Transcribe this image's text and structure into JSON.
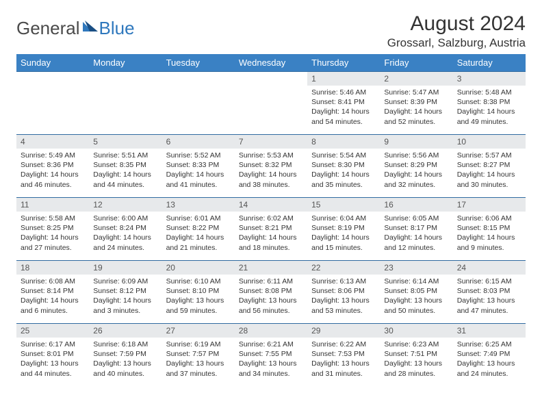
{
  "brand": {
    "part1": "General",
    "part2": "Blue"
  },
  "title": "August 2024",
  "location": "Grossarl, Salzburg, Austria",
  "colors": {
    "header_bg": "#3a81c4",
    "header_text": "#ffffff",
    "daynum_bg": "#e7e9eb",
    "row_border": "#2f6aa0",
    "brand_gray": "#4a4a4a",
    "brand_blue": "#2f78bd"
  },
  "weekdays": [
    "Sunday",
    "Monday",
    "Tuesday",
    "Wednesday",
    "Thursday",
    "Friday",
    "Saturday"
  ],
  "grid": [
    [
      {
        "empty": true
      },
      {
        "empty": true
      },
      {
        "empty": true
      },
      {
        "empty": true
      },
      {
        "day": "1",
        "sunrise": "Sunrise: 5:46 AM",
        "sunset": "Sunset: 8:41 PM",
        "dl1": "Daylight: 14 hours",
        "dl2": "and 54 minutes."
      },
      {
        "day": "2",
        "sunrise": "Sunrise: 5:47 AM",
        "sunset": "Sunset: 8:39 PM",
        "dl1": "Daylight: 14 hours",
        "dl2": "and 52 minutes."
      },
      {
        "day": "3",
        "sunrise": "Sunrise: 5:48 AM",
        "sunset": "Sunset: 8:38 PM",
        "dl1": "Daylight: 14 hours",
        "dl2": "and 49 minutes."
      }
    ],
    [
      {
        "day": "4",
        "sunrise": "Sunrise: 5:49 AM",
        "sunset": "Sunset: 8:36 PM",
        "dl1": "Daylight: 14 hours",
        "dl2": "and 46 minutes."
      },
      {
        "day": "5",
        "sunrise": "Sunrise: 5:51 AM",
        "sunset": "Sunset: 8:35 PM",
        "dl1": "Daylight: 14 hours",
        "dl2": "and 44 minutes."
      },
      {
        "day": "6",
        "sunrise": "Sunrise: 5:52 AM",
        "sunset": "Sunset: 8:33 PM",
        "dl1": "Daylight: 14 hours",
        "dl2": "and 41 minutes."
      },
      {
        "day": "7",
        "sunrise": "Sunrise: 5:53 AM",
        "sunset": "Sunset: 8:32 PM",
        "dl1": "Daylight: 14 hours",
        "dl2": "and 38 minutes."
      },
      {
        "day": "8",
        "sunrise": "Sunrise: 5:54 AM",
        "sunset": "Sunset: 8:30 PM",
        "dl1": "Daylight: 14 hours",
        "dl2": "and 35 minutes."
      },
      {
        "day": "9",
        "sunrise": "Sunrise: 5:56 AM",
        "sunset": "Sunset: 8:29 PM",
        "dl1": "Daylight: 14 hours",
        "dl2": "and 32 minutes."
      },
      {
        "day": "10",
        "sunrise": "Sunrise: 5:57 AM",
        "sunset": "Sunset: 8:27 PM",
        "dl1": "Daylight: 14 hours",
        "dl2": "and 30 minutes."
      }
    ],
    [
      {
        "day": "11",
        "sunrise": "Sunrise: 5:58 AM",
        "sunset": "Sunset: 8:25 PM",
        "dl1": "Daylight: 14 hours",
        "dl2": "and 27 minutes."
      },
      {
        "day": "12",
        "sunrise": "Sunrise: 6:00 AM",
        "sunset": "Sunset: 8:24 PM",
        "dl1": "Daylight: 14 hours",
        "dl2": "and 24 minutes."
      },
      {
        "day": "13",
        "sunrise": "Sunrise: 6:01 AM",
        "sunset": "Sunset: 8:22 PM",
        "dl1": "Daylight: 14 hours",
        "dl2": "and 21 minutes."
      },
      {
        "day": "14",
        "sunrise": "Sunrise: 6:02 AM",
        "sunset": "Sunset: 8:21 PM",
        "dl1": "Daylight: 14 hours",
        "dl2": "and 18 minutes."
      },
      {
        "day": "15",
        "sunrise": "Sunrise: 6:04 AM",
        "sunset": "Sunset: 8:19 PM",
        "dl1": "Daylight: 14 hours",
        "dl2": "and 15 minutes."
      },
      {
        "day": "16",
        "sunrise": "Sunrise: 6:05 AM",
        "sunset": "Sunset: 8:17 PM",
        "dl1": "Daylight: 14 hours",
        "dl2": "and 12 minutes."
      },
      {
        "day": "17",
        "sunrise": "Sunrise: 6:06 AM",
        "sunset": "Sunset: 8:15 PM",
        "dl1": "Daylight: 14 hours",
        "dl2": "and 9 minutes."
      }
    ],
    [
      {
        "day": "18",
        "sunrise": "Sunrise: 6:08 AM",
        "sunset": "Sunset: 8:14 PM",
        "dl1": "Daylight: 14 hours",
        "dl2": "and 6 minutes."
      },
      {
        "day": "19",
        "sunrise": "Sunrise: 6:09 AM",
        "sunset": "Sunset: 8:12 PM",
        "dl1": "Daylight: 14 hours",
        "dl2": "and 3 minutes."
      },
      {
        "day": "20",
        "sunrise": "Sunrise: 6:10 AM",
        "sunset": "Sunset: 8:10 PM",
        "dl1": "Daylight: 13 hours",
        "dl2": "and 59 minutes."
      },
      {
        "day": "21",
        "sunrise": "Sunrise: 6:11 AM",
        "sunset": "Sunset: 8:08 PM",
        "dl1": "Daylight: 13 hours",
        "dl2": "and 56 minutes."
      },
      {
        "day": "22",
        "sunrise": "Sunrise: 6:13 AM",
        "sunset": "Sunset: 8:06 PM",
        "dl1": "Daylight: 13 hours",
        "dl2": "and 53 minutes."
      },
      {
        "day": "23",
        "sunrise": "Sunrise: 6:14 AM",
        "sunset": "Sunset: 8:05 PM",
        "dl1": "Daylight: 13 hours",
        "dl2": "and 50 minutes."
      },
      {
        "day": "24",
        "sunrise": "Sunrise: 6:15 AM",
        "sunset": "Sunset: 8:03 PM",
        "dl1": "Daylight: 13 hours",
        "dl2": "and 47 minutes."
      }
    ],
    [
      {
        "day": "25",
        "sunrise": "Sunrise: 6:17 AM",
        "sunset": "Sunset: 8:01 PM",
        "dl1": "Daylight: 13 hours",
        "dl2": "and 44 minutes."
      },
      {
        "day": "26",
        "sunrise": "Sunrise: 6:18 AM",
        "sunset": "Sunset: 7:59 PM",
        "dl1": "Daylight: 13 hours",
        "dl2": "and 40 minutes."
      },
      {
        "day": "27",
        "sunrise": "Sunrise: 6:19 AM",
        "sunset": "Sunset: 7:57 PM",
        "dl1": "Daylight: 13 hours",
        "dl2": "and 37 minutes."
      },
      {
        "day": "28",
        "sunrise": "Sunrise: 6:21 AM",
        "sunset": "Sunset: 7:55 PM",
        "dl1": "Daylight: 13 hours",
        "dl2": "and 34 minutes."
      },
      {
        "day": "29",
        "sunrise": "Sunrise: 6:22 AM",
        "sunset": "Sunset: 7:53 PM",
        "dl1": "Daylight: 13 hours",
        "dl2": "and 31 minutes."
      },
      {
        "day": "30",
        "sunrise": "Sunrise: 6:23 AM",
        "sunset": "Sunset: 7:51 PM",
        "dl1": "Daylight: 13 hours",
        "dl2": "and 28 minutes."
      },
      {
        "day": "31",
        "sunrise": "Sunrise: 6:25 AM",
        "sunset": "Sunset: 7:49 PM",
        "dl1": "Daylight: 13 hours",
        "dl2": "and 24 minutes."
      }
    ]
  ]
}
